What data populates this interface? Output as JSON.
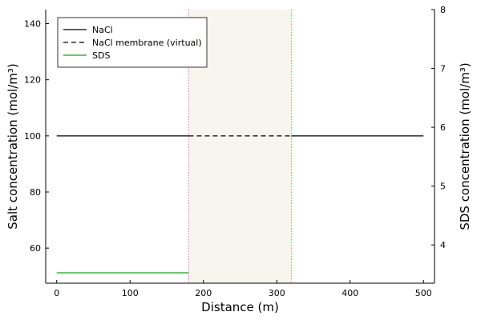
{
  "chart_data": {
    "type": "line",
    "xlabel": "Distance (m)",
    "ylabel": "Salt concentration (mol/m³)",
    "y2label": "SDS concentration (mol/m³)",
    "xlim": [
      -15,
      515
    ],
    "ylim": [
      47.5,
      145
    ],
    "y2lim": [
      3.35,
      8.0
    ],
    "xticks": [
      0,
      100,
      200,
      300,
      400,
      500
    ],
    "yticks": [
      60,
      80,
      100,
      120,
      140
    ],
    "y2ticks": [
      4,
      5,
      6,
      7,
      8
    ],
    "grid": false,
    "legend_position": "top-left",
    "membrane_region": {
      "x": [
        180,
        320
      ],
      "color": "#f7f5ee",
      "edge_color": "#d76fd7"
    },
    "series": [
      {
        "name": "NaCl",
        "axis": "left",
        "style": "solid",
        "color": "#000000",
        "x": [
          0,
          180,
          320,
          500
        ],
        "y": [
          100,
          100,
          100,
          100
        ],
        "segments": [
          [
            0,
            180
          ],
          [
            320,
            500
          ]
        ]
      },
      {
        "name": "NaCl membrane (virtual)",
        "axis": "left",
        "style": "dashed",
        "color": "#000000",
        "x": [
          180,
          320
        ],
        "y": [
          100,
          100
        ]
      },
      {
        "name": "SDS",
        "axis": "left",
        "style": "solid",
        "color": "#1a9e1a",
        "x": [
          0,
          180
        ],
        "y": [
          51.2,
          51.2
        ]
      }
    ]
  }
}
